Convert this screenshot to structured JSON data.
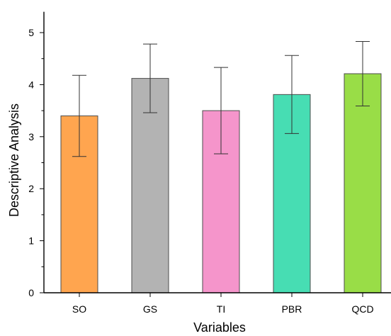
{
  "chart_data": {
    "type": "bar",
    "title": "",
    "xlabel": "Variables",
    "ylabel": "Descriptive Analysis",
    "ylim": [
      0,
      5.4
    ],
    "yticks": [
      0,
      1,
      2,
      3,
      4,
      5
    ],
    "grid": false,
    "categories": [
      "SO",
      "GS",
      "TI",
      "PBR",
      "QCD"
    ],
    "values": [
      3.4,
      4.12,
      3.5,
      3.81,
      4.21
    ],
    "error_low": [
      2.62,
      3.46,
      2.67,
      3.06,
      3.59
    ],
    "error_high": [
      4.18,
      4.78,
      4.33,
      4.56,
      4.83
    ],
    "colors": [
      "#FFA54F",
      "#B3B3B3",
      "#F595CB",
      "#47DDB3",
      "#99DD47"
    ]
  }
}
